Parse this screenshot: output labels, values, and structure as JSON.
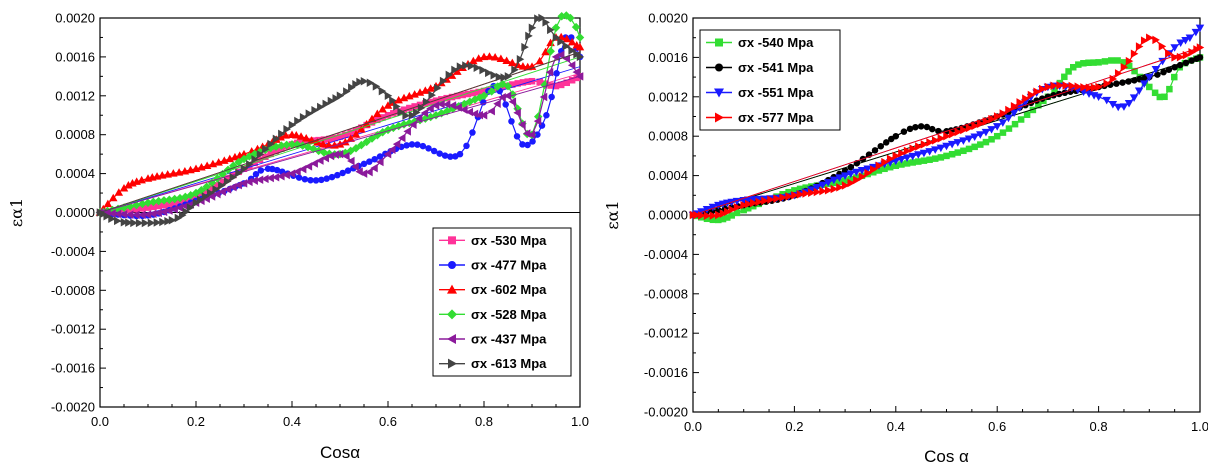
{
  "chart_data": [
    {
      "type": "line",
      "xlabel": "Cosα",
      "ylabel": "εα1",
      "xlim": [
        0.0,
        1.0
      ],
      "ylim": [
        -0.002,
        0.002
      ],
      "xticks": [
        "0.0",
        "0.2",
        "0.4",
        "0.6",
        "0.8",
        "1.0"
      ],
      "yticks": [
        "-0.0020",
        "-0.0016",
        "-0.0012",
        "-0.0008",
        "-0.0004",
        "0.0000",
        "0.0004",
        "0.0008",
        "0.0012",
        "0.0016",
        "0.0020"
      ],
      "legend_position": "bottom-right",
      "series": [
        {
          "name": "σx -530 Mpa",
          "color": "#ff3399",
          "marker": "square",
          "slope": 0.00143,
          "x": [
            0,
            0.1,
            0.2,
            0.3,
            0.4,
            0.5,
            0.6,
            0.7,
            0.8,
            0.9,
            0.95,
            1.0
          ],
          "y": [
            0,
            5e-05,
            0.00016,
            0.00045,
            0.0007,
            0.00078,
            0.001,
            0.00115,
            0.00125,
            0.00135,
            0.0013,
            0.0014
          ]
        },
        {
          "name": "σx -477 Mpa",
          "color": "#1a1aff",
          "marker": "circle",
          "slope": 0.0015,
          "x": [
            0,
            0.1,
            0.2,
            0.3,
            0.35,
            0.45,
            0.55,
            0.65,
            0.75,
            0.82,
            0.88,
            0.93,
            0.97,
            1.0
          ],
          "y": [
            0,
            -3e-05,
            0.00012,
            0.0003,
            0.00045,
            0.00033,
            0.0005,
            0.0007,
            0.0006,
            0.0013,
            0.0007,
            0.001,
            0.0018,
            0.0016
          ]
        },
        {
          "name": "σx -602 Mpa",
          "color": "#ff0000",
          "marker": "triangle-up",
          "slope": 0.00165,
          "x": [
            0,
            0.05,
            0.1,
            0.2,
            0.3,
            0.35,
            0.4,
            0.5,
            0.6,
            0.7,
            0.8,
            0.9,
            0.95,
            1.0
          ],
          "y": [
            0,
            0.00025,
            0.00035,
            0.00045,
            0.0006,
            0.0007,
            0.0008,
            0.0007,
            0.0011,
            0.0013,
            0.0016,
            0.0015,
            0.0018,
            0.0017
          ]
        },
        {
          "name": "σx -528 Mpa",
          "color": "#33dd33",
          "marker": "diamond",
          "slope": 0.0016,
          "x": [
            0,
            0.1,
            0.2,
            0.3,
            0.4,
            0.5,
            0.6,
            0.7,
            0.8,
            0.85,
            0.9,
            0.95,
            0.98,
            1.0
          ],
          "y": [
            0,
            0.0001,
            0.0002,
            0.00055,
            0.0007,
            0.0006,
            0.00085,
            0.001,
            0.0012,
            0.0013,
            0.0008,
            0.0019,
            0.002,
            0.0018
          ]
        },
        {
          "name": "σx -437 Mpa",
          "color": "#8b1a9b",
          "marker": "triangle-left",
          "slope": 0.0014,
          "x": [
            0,
            0.1,
            0.2,
            0.3,
            0.4,
            0.5,
            0.55,
            0.6,
            0.7,
            0.8,
            0.85,
            0.9,
            0.95,
            1.0
          ],
          "y": [
            0,
            -2e-05,
            0.0001,
            0.0003,
            0.0004,
            0.0006,
            0.0004,
            0.0006,
            0.0011,
            0.001,
            0.0012,
            0.0008,
            0.0016,
            0.0014
          ]
        },
        {
          "name": "σx -613 Mpa",
          "color": "#444444",
          "marker": "triangle-right",
          "slope": 0.00165,
          "x": [
            0,
            0.05,
            0.15,
            0.2,
            0.3,
            0.4,
            0.5,
            0.55,
            0.6,
            0.65,
            0.75,
            0.85,
            0.9,
            0.92,
            0.95,
            1.0
          ],
          "y": [
            0,
            -0.0001,
            -8e-05,
            0.0001,
            0.00045,
            0.0009,
            0.0012,
            0.00135,
            0.0012,
            0.001,
            0.0015,
            0.0014,
            0.0019,
            0.002,
            0.0018,
            0.0016
          ]
        }
      ]
    },
    {
      "type": "line",
      "xlabel": "Cos α",
      "ylabel": "εα1",
      "xlim": [
        0.0,
        1.0
      ],
      "ylim": [
        -0.002,
        0.002
      ],
      "xticks": [
        "0.0",
        "0.2",
        "0.4",
        "0.6",
        "0.8",
        "1.0"
      ],
      "yticks": [
        "-0.0020",
        "-0.0016",
        "-0.0012",
        "-0.0008",
        "-0.0004",
        "0.0000",
        "0.0004",
        "0.0008",
        "0.0012",
        "0.0016",
        "0.0020"
      ],
      "legend_position": "top-left",
      "series": [
        {
          "name": "σx -540 Mpa",
          "color": "#33dd33",
          "marker": "square",
          "slope": 0.0016,
          "x": [
            0,
            0.05,
            0.1,
            0.2,
            0.3,
            0.4,
            0.5,
            0.6,
            0.7,
            0.75,
            0.8,
            0.85,
            0.9,
            0.93,
            0.96,
            1.0
          ],
          "y": [
            0,
            -5e-05,
            5e-05,
            0.00025,
            0.00035,
            0.0005,
            0.0006,
            0.0008,
            0.0012,
            0.0015,
            0.00155,
            0.00155,
            0.0013,
            0.0012,
            0.0015,
            0.0016
          ]
        },
        {
          "name": "σx -541 Mpa",
          "color": "#000000",
          "marker": "circle",
          "slope": 0.0016,
          "x": [
            0,
            0.1,
            0.2,
            0.3,
            0.4,
            0.45,
            0.5,
            0.6,
            0.7,
            0.8,
            0.9,
            0.95,
            1.0
          ],
          "y": [
            0,
            0.0001,
            0.0002,
            0.00045,
            0.0008,
            0.0009,
            0.00085,
            0.001,
            0.0012,
            0.0013,
            0.0014,
            0.0015,
            0.0016
          ]
        },
        {
          "name": "σx -551 Mpa",
          "color": "#1a1aff",
          "marker": "triangle-down",
          "slope": 0.0017,
          "x": [
            0,
            0.05,
            0.1,
            0.2,
            0.3,
            0.4,
            0.5,
            0.6,
            0.7,
            0.8,
            0.85,
            0.9,
            0.95,
            0.98,
            1.0
          ],
          "y": [
            0,
            0.0001,
            0.00015,
            0.0002,
            0.0004,
            0.00055,
            0.0007,
            0.0009,
            0.0013,
            0.0012,
            0.0011,
            0.0014,
            0.0017,
            0.0018,
            0.0019
          ]
        },
        {
          "name": "σx -577 Mpa",
          "color": "#ff0000",
          "marker": "triangle-right",
          "slope": 0.0017,
          "x": [
            0,
            0.05,
            0.1,
            0.2,
            0.3,
            0.4,
            0.5,
            0.6,
            0.7,
            0.8,
            0.85,
            0.9,
            0.95,
            1.0
          ],
          "y": [
            0,
            0.0,
            0.0001,
            0.0002,
            0.0003,
            0.0006,
            0.0008,
            0.001,
            0.0013,
            0.0013,
            0.0015,
            0.0018,
            0.0016,
            0.0017
          ]
        }
      ]
    }
  ]
}
